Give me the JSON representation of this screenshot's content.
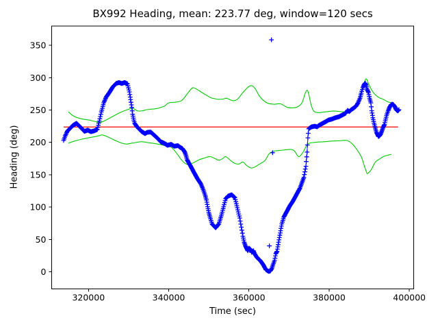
{
  "chart_data": {
    "type": "line",
    "title": "BX992 Heading, mean: 223.77 deg, window=120 secs",
    "xlabel": "Time (sec)",
    "ylabel": "Heading (deg)",
    "xlim": [
      310820,
      401080
    ],
    "ylim": [
      -26.5,
      379.8
    ],
    "xticks": [
      320000,
      340000,
      360000,
      380000,
      400000
    ],
    "yticks": [
      0,
      50,
      100,
      150,
      200,
      250,
      300,
      350
    ],
    "grid": false,
    "legend": "none",
    "mean_value": 223.77,
    "window_secs": 120,
    "colors": {
      "heading": "#0000ff",
      "envelope": "#00cc00",
      "mean": "#ff0000",
      "axis": "#000000"
    },
    "series": [
      {
        "name": "heading",
        "style": "markers+line",
        "marker": "+",
        "color": "#0000ff",
        "points": [
          [
            313800,
            203
          ],
          [
            314200,
            210
          ],
          [
            314700,
            217
          ],
          [
            315300,
            221
          ],
          [
            316100,
            226
          ],
          [
            317000,
            229.5
          ],
          [
            317900,
            224
          ],
          [
            318400,
            221
          ],
          [
            319000,
            217
          ],
          [
            319800,
            219
          ],
          [
            320600,
            216.5
          ],
          [
            321500,
            218
          ],
          [
            322200,
            220
          ],
          [
            322700,
            233
          ],
          [
            323200,
            247
          ],
          [
            323800,
            261
          ],
          [
            324400,
            270
          ],
          [
            325200,
            277
          ],
          [
            326100,
            286
          ],
          [
            326900,
            291
          ],
          [
            327600,
            292.5
          ],
          [
            328300,
            291
          ],
          [
            329000,
            292.5
          ],
          [
            329700,
            290.5
          ],
          [
            330200,
            278
          ],
          [
            330500,
            266
          ],
          [
            330800,
            254
          ],
          [
            331000,
            243.5
          ],
          [
            331300,
            234.5
          ],
          [
            331500,
            229.5
          ],
          [
            332100,
            224
          ],
          [
            332600,
            221
          ],
          [
            333200,
            217
          ],
          [
            334100,
            213.5
          ],
          [
            334600,
            215.5
          ],
          [
            335500,
            216
          ],
          [
            336300,
            211.5
          ],
          [
            337200,
            206.5
          ],
          [
            338000,
            201
          ],
          [
            338900,
            198.5
          ],
          [
            339700,
            195.5
          ],
          [
            340600,
            197
          ],
          [
            341400,
            194
          ],
          [
            342300,
            195
          ],
          [
            342800,
            192.5
          ],
          [
            343400,
            190.5
          ],
          [
            344000,
            185
          ],
          [
            344300,
            180
          ],
          [
            344600,
            173
          ],
          [
            344900,
            169.5
          ],
          [
            345400,
            164
          ],
          [
            346300,
            153.5
          ],
          [
            347100,
            144.5
          ],
          [
            348000,
            136
          ],
          [
            348600,
            127
          ],
          [
            349100,
            118
          ],
          [
            349400,
            111
          ],
          [
            349700,
            100.5
          ],
          [
            350000,
            91.5
          ],
          [
            350300,
            84.5
          ],
          [
            350800,
            74
          ],
          [
            351700,
            68
          ],
          [
            352500,
            74
          ],
          [
            353100,
            86.5
          ],
          [
            353700,
            100.5
          ],
          [
            354200,
            113
          ],
          [
            354800,
            117
          ],
          [
            355700,
            119
          ],
          [
            356500,
            114.5
          ],
          [
            357100,
            99
          ],
          [
            357700,
            83
          ],
          [
            358100,
            69
          ],
          [
            358500,
            55
          ],
          [
            358800,
            46
          ],
          [
            359100,
            40.5
          ],
          [
            359400,
            36.5
          ],
          [
            359700,
            32.5
          ],
          [
            360000,
            36.5
          ],
          [
            360400,
            34.5
          ],
          [
            360700,
            30
          ],
          [
            361100,
            32.5
          ],
          [
            361400,
            28
          ],
          [
            361900,
            23
          ],
          [
            362400,
            19.5
          ],
          [
            362800,
            17.5
          ],
          [
            363600,
            10.5
          ],
          [
            364200,
            3.5
          ],
          [
            364900,
            0.5
          ],
          [
            365300,
            1
          ],
          [
            365700,
            5
          ],
          [
            366000,
            11
          ],
          [
            366400,
            17.5
          ],
          [
            366700,
            28
          ],
          [
            367000,
            31.5
          ],
          [
            367300,
            42
          ],
          [
            367600,
            53
          ],
          [
            367900,
            63.5
          ],
          [
            368200,
            74
          ],
          [
            368700,
            84.5
          ],
          [
            369300,
            91.5
          ],
          [
            370200,
            102
          ],
          [
            371000,
            109.5
          ],
          [
            372700,
            129
          ],
          [
            373700,
            146
          ],
          [
            374200,
            163
          ],
          [
            374500,
            185
          ],
          [
            374700,
            207
          ],
          [
            374900,
            221
          ],
          [
            375600,
            224
          ],
          [
            376400,
            225
          ],
          [
            377000,
            224
          ],
          [
            377400,
            226
          ],
          [
            378100,
            228.5
          ],
          [
            379000,
            231.5
          ],
          [
            379800,
            234.5
          ],
          [
            380700,
            236
          ],
          [
            381500,
            238
          ],
          [
            382400,
            239.5
          ],
          [
            383200,
            242
          ],
          [
            384100,
            245
          ],
          [
            384600,
            249.5
          ],
          [
            385000,
            247.5
          ],
          [
            385500,
            250.5
          ],
          [
            386000,
            252.5
          ],
          [
            386700,
            256
          ],
          [
            387200,
            261
          ],
          [
            387700,
            268.5
          ],
          [
            388000,
            276
          ],
          [
            388400,
            284.5
          ],
          [
            388700,
            289
          ],
          [
            389000,
            291.5
          ],
          [
            389200,
            288.5
          ],
          [
            389500,
            281.5
          ],
          [
            389800,
            277
          ],
          [
            390100,
            268
          ],
          [
            390400,
            261
          ],
          [
            390600,
            249
          ],
          [
            390900,
            238
          ],
          [
            391200,
            229.5
          ],
          [
            391500,
            222
          ],
          [
            391800,
            215.5
          ],
          [
            392100,
            211.5
          ],
          [
            392300,
            209
          ],
          [
            392600,
            210.5
          ],
          [
            392900,
            213.5
          ],
          [
            393200,
            218.5
          ],
          [
            393500,
            224
          ],
          [
            393800,
            227.5
          ],
          [
            394000,
            233.5
          ],
          [
            394300,
            241.5
          ],
          [
            394700,
            248.5
          ],
          [
            395000,
            253.5
          ],
          [
            395400,
            258
          ],
          [
            395700,
            259
          ],
          [
            396000,
            258.5
          ],
          [
            396400,
            255
          ],
          [
            396700,
            250.5
          ],
          [
            397100,
            248.5
          ],
          [
            397400,
            250.5
          ]
        ],
        "outliers": [
          [
            365600,
            358.5
          ],
          [
            365900,
            184
          ],
          [
            365100,
            40
          ]
        ]
      },
      {
        "name": "upper-envelope",
        "style": "line",
        "color": "#00cc00",
        "points": [
          [
            315000,
            247
          ],
          [
            316200,
            241
          ],
          [
            317300,
            238
          ],
          [
            318500,
            236
          ],
          [
            320100,
            234.5
          ],
          [
            321500,
            232.5
          ],
          [
            323000,
            231
          ],
          [
            324500,
            235
          ],
          [
            326000,
            240
          ],
          [
            327500,
            245
          ],
          [
            329000,
            249
          ],
          [
            330900,
            252.5
          ],
          [
            332300,
            248.5
          ],
          [
            333500,
            249
          ],
          [
            334600,
            250.5
          ],
          [
            336000,
            251.5
          ],
          [
            337200,
            252.5
          ],
          [
            338900,
            256
          ],
          [
            340000,
            261
          ],
          [
            341500,
            262
          ],
          [
            343200,
            264.5
          ],
          [
            344500,
            274
          ],
          [
            345500,
            282
          ],
          [
            346200,
            284.5
          ],
          [
            347400,
            280.5
          ],
          [
            348300,
            277
          ],
          [
            349100,
            274
          ],
          [
            350500,
            269
          ],
          [
            351500,
            267.5
          ],
          [
            352500,
            266.5
          ],
          [
            353500,
            267
          ],
          [
            354500,
            268
          ],
          [
            355900,
            264.5
          ],
          [
            357100,
            266.5
          ],
          [
            358500,
            277
          ],
          [
            359900,
            286
          ],
          [
            360800,
            287.5
          ],
          [
            361600,
            282.5
          ],
          [
            362800,
            270
          ],
          [
            364500,
            261
          ],
          [
            366200,
            259
          ],
          [
            367900,
            259.5
          ],
          [
            369600,
            254
          ],
          [
            371300,
            253.5
          ],
          [
            372400,
            256
          ],
          [
            373300,
            262
          ],
          [
            374100,
            277
          ],
          [
            374700,
            279
          ],
          [
            375500,
            258
          ],
          [
            376200,
            248
          ],
          [
            377300,
            246
          ],
          [
            379000,
            247
          ],
          [
            381000,
            248.5
          ],
          [
            383000,
            247.5
          ],
          [
            384800,
            247
          ],
          [
            385800,
            249
          ],
          [
            386600,
            255
          ],
          [
            387400,
            267
          ],
          [
            388200,
            283
          ],
          [
            388900,
            295
          ],
          [
            389300,
            298
          ],
          [
            389800,
            291
          ],
          [
            390500,
            282
          ],
          [
            391500,
            273.5
          ],
          [
            392500,
            269
          ],
          [
            393500,
            266.5
          ],
          [
            394700,
            262.5
          ],
          [
            395800,
            261
          ]
        ]
      },
      {
        "name": "lower-envelope",
        "style": "line",
        "color": "#00cc00",
        "points": [
          [
            315000,
            199
          ],
          [
            316500,
            202
          ],
          [
            318400,
            205
          ],
          [
            320500,
            207.5
          ],
          [
            322500,
            210
          ],
          [
            323500,
            211.5
          ],
          [
            325000,
            208
          ],
          [
            327000,
            202
          ],
          [
            329200,
            197.5
          ],
          [
            331000,
            199
          ],
          [
            333200,
            201
          ],
          [
            335000,
            199.5
          ],
          [
            337200,
            197.5
          ],
          [
            339000,
            195
          ],
          [
            340600,
            192.5
          ],
          [
            342000,
            183
          ],
          [
            343300,
            172
          ],
          [
            344600,
            166
          ],
          [
            346000,
            168
          ],
          [
            347500,
            173
          ],
          [
            349000,
            176
          ],
          [
            350300,
            178
          ],
          [
            351500,
            175
          ],
          [
            352500,
            172.5
          ],
          [
            353500,
            175
          ],
          [
            354200,
            178
          ],
          [
            355400,
            172
          ],
          [
            356500,
            167.5
          ],
          [
            357500,
            166.5
          ],
          [
            358500,
            169.5
          ],
          [
            359500,
            164
          ],
          [
            360500,
            160.5
          ],
          [
            361500,
            162
          ],
          [
            362500,
            166
          ],
          [
            364000,
            172
          ],
          [
            365000,
            182
          ],
          [
            366000,
            186
          ],
          [
            366700,
            187
          ],
          [
            368500,
            188
          ],
          [
            370400,
            189
          ],
          [
            371300,
            187
          ],
          [
            372400,
            178
          ],
          [
            373500,
            185
          ],
          [
            374700,
            197.5
          ],
          [
            376500,
            200
          ],
          [
            378700,
            201
          ],
          [
            380500,
            202
          ],
          [
            382500,
            202.5
          ],
          [
            384400,
            203
          ],
          [
            385800,
            197.5
          ],
          [
            387000,
            188
          ],
          [
            388000,
            178
          ],
          [
            388700,
            165
          ],
          [
            389300,
            154
          ],
          [
            389600,
            152
          ],
          [
            390500,
            158
          ],
          [
            391500,
            169.5
          ],
          [
            392500,
            174
          ],
          [
            393500,
            178
          ],
          [
            394500,
            180
          ],
          [
            395500,
            181.5
          ]
        ]
      },
      {
        "name": "mean-line",
        "style": "hline",
        "color": "#ff0000",
        "value": 223.77,
        "t_start": 313800,
        "t_end": 397200
      }
    ]
  }
}
